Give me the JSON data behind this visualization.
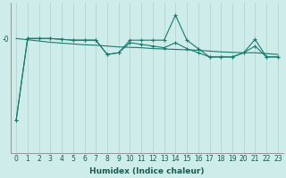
{
  "xlabel": "Humidex (Indice chaleur)",
  "ylabel": "",
  "background_color": "#ceecea",
  "line_color": "#1a7a6e",
  "grid_color": "#b8d8d4",
  "x_data": [
    0,
    1,
    2,
    3,
    4,
    5,
    6,
    7,
    8,
    9,
    10,
    11,
    12,
    13,
    14,
    15,
    16,
    17,
    18,
    19,
    20,
    21,
    22,
    23
  ],
  "y_line1": [
    -10.0,
    -0.3,
    -0.3,
    -0.3,
    -0.4,
    -0.5,
    -0.5,
    -0.5,
    -2.2,
    -2.0,
    -0.5,
    -0.5,
    -0.5,
    -0.5,
    2.5,
    -0.5,
    -1.5,
    -2.5,
    -2.5,
    -2.5,
    -2.0,
    -0.4,
    -2.5,
    -2.5
  ],
  "y_line2": [
    -10.0,
    -0.3,
    -0.3,
    -0.3,
    -0.4,
    -0.5,
    -0.5,
    -0.5,
    -2.2,
    -2.0,
    -0.8,
    -1.0,
    -1.2,
    -1.4,
    -0.8,
    -1.5,
    -2.0,
    -2.5,
    -2.5,
    -2.5,
    -2.0,
    -1.2,
    -2.5,
    -2.5
  ],
  "y_trend": [
    -0.3,
    -0.45,
    -0.6,
    -0.75,
    -0.85,
    -0.95,
    -1.05,
    -1.1,
    -1.2,
    -1.3,
    -1.35,
    -1.4,
    -1.5,
    -1.55,
    -1.6,
    -1.65,
    -1.7,
    -1.8,
    -1.9,
    -1.95,
    -2.0,
    -2.0,
    -2.1,
    -2.2
  ],
  "ytick_val": -0.3,
  "ytick_label": "-0",
  "ylim": [
    -14,
    4
  ],
  "xlim": [
    -0.5,
    23.5
  ],
  "tick_fontsize": 5.5,
  "label_fontsize": 6.5
}
